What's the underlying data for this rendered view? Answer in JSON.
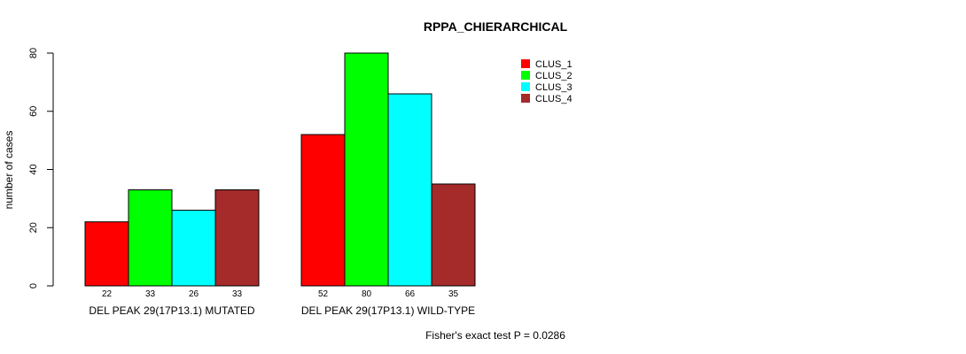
{
  "chart_data": {
    "type": "bar",
    "title": "RPPA_CHIERARCHICAL",
    "ylabel": "number of cases",
    "xlabel": "",
    "ylim": [
      0,
      80
    ],
    "yticks": [
      0,
      20,
      40,
      60,
      80
    ],
    "grid": false,
    "legend_position": "top-right",
    "categories": [
      "DEL PEAK 29(17P13.1) MUTATED",
      "DEL PEAK 29(17P13.1) WILD-TYPE"
    ],
    "series": [
      {
        "name": "CLUS_1",
        "color": "#ff0000",
        "values": [
          22,
          52
        ]
      },
      {
        "name": "CLUS_2",
        "color": "#00ff00",
        "values": [
          33,
          80
        ]
      },
      {
        "name": "CLUS_3",
        "color": "#00ffff",
        "values": [
          26,
          66
        ]
      },
      {
        "name": "CLUS_4",
        "color": "#a52a2a",
        "values": [
          33,
          35
        ]
      }
    ],
    "footnote": "Fisher's exact test P = 0.0286"
  }
}
